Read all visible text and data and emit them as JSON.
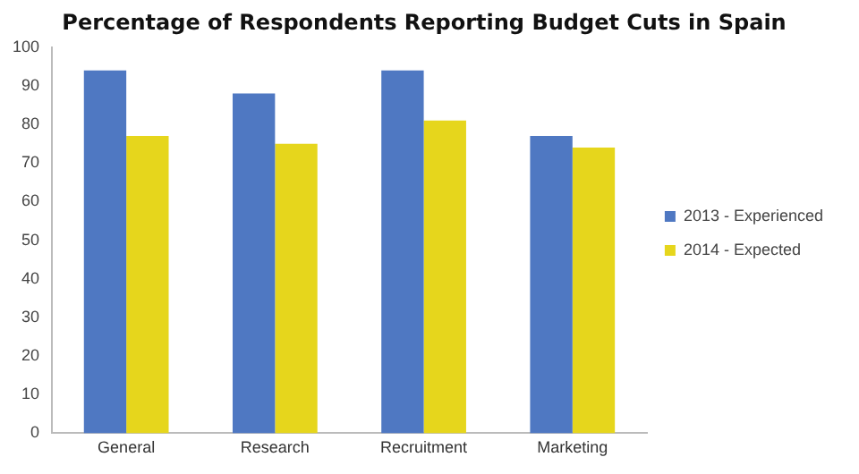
{
  "chart_data": {
    "type": "bar",
    "title": "Percentage of Respondents Reporting Budget Cuts in Spain",
    "categories": [
      "General",
      "Research",
      "Recruitment",
      "Marketing"
    ],
    "series": [
      {
        "name": "2013 - Experienced",
        "color": "#4f78c2",
        "values": [
          94,
          88,
          94,
          77
        ]
      },
      {
        "name": "2014 - Expected",
        "color": "#e6d61c",
        "values": [
          77,
          75,
          81,
          74
        ]
      }
    ],
    "ylim": [
      0,
      100
    ],
    "yticks": [
      0,
      10,
      20,
      30,
      40,
      50,
      60,
      70,
      80,
      90,
      100
    ],
    "grid": false,
    "legend": "right"
  }
}
